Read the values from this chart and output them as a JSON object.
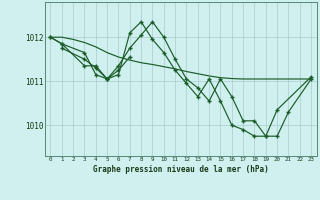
{
  "background_color": "#cff0ee",
  "grid_color": "#aacccc",
  "line_color": "#1a5c28",
  "title": "Graphe pression niveau de la mer (hPa)",
  "xlabel_hours": [
    0,
    1,
    2,
    3,
    4,
    5,
    6,
    7,
    8,
    9,
    10,
    11,
    12,
    13,
    14,
    15,
    16,
    17,
    18,
    19,
    20,
    21,
    22,
    23
  ],
  "yticks": [
    1010,
    1011,
    1012
  ],
  "ylim": [
    1009.3,
    1012.8
  ],
  "xlim": [
    -0.5,
    23.5
  ],
  "line1_x": [
    0,
    1,
    2,
    3,
    4,
    5,
    6,
    7,
    8,
    9,
    10,
    11,
    12,
    13,
    14,
    15,
    16,
    17,
    18,
    19,
    20,
    21,
    22,
    23
  ],
  "line1_y": [
    1012.0,
    1012.0,
    1011.95,
    1011.88,
    1011.78,
    1011.65,
    1011.55,
    1011.48,
    1011.42,
    1011.38,
    1011.33,
    1011.28,
    1011.22,
    1011.17,
    1011.12,
    1011.08,
    1011.06,
    1011.05,
    1011.05,
    1011.05,
    1011.05,
    1011.05,
    1011.05,
    1011.05
  ],
  "line2_x": [
    0,
    1,
    3,
    4,
    5,
    6,
    7,
    8,
    9,
    10,
    11,
    12,
    13,
    14,
    15,
    16,
    17,
    18,
    19,
    20,
    21,
    23
  ],
  "line2_y": [
    1012.0,
    1011.85,
    1011.65,
    1011.15,
    1011.05,
    1011.35,
    1011.75,
    1012.05,
    1012.35,
    1012.0,
    1011.5,
    1011.05,
    1010.85,
    1010.55,
    1011.05,
    1010.65,
    1010.1,
    1010.1,
    1009.75,
    1009.75,
    1010.3,
    1011.05
  ],
  "line3_x": [
    0,
    1,
    3,
    4,
    5,
    6,
    7,
    8,
    9,
    10,
    11,
    12,
    13,
    14,
    15,
    16,
    17,
    18,
    19,
    20,
    21,
    23
  ],
  "line3_y": [
    1012.0,
    1011.85,
    1011.35,
    1011.35,
    1011.05,
    1011.15,
    1012.1,
    1012.35,
    1011.95,
    1011.65,
    1011.25,
    1010.95,
    1010.65,
    1011.05,
    1010.55,
    1010.0,
    1009.9,
    1009.75,
    1009.75,
    1010.35,
    null,
    1011.1
  ],
  "line4_x": [
    1,
    3,
    4,
    5,
    6,
    7
  ],
  "line4_y": [
    1011.75,
    1011.5,
    1011.3,
    1011.05,
    1011.25,
    1011.55
  ]
}
